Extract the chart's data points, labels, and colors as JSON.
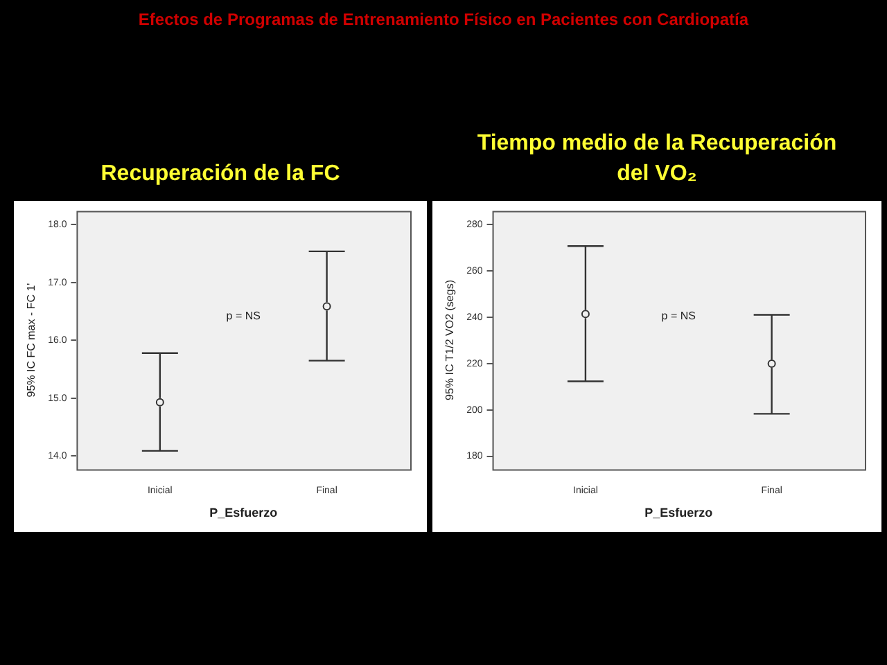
{
  "chart_data": [
    {
      "type": "scatter",
      "title": "Recuperación de la FC",
      "annotations": [
        "Efectos de Programas de Entrenamiento Físico en Pacientes con Cardiopatía",
        "p = NS"
      ],
      "xlabel": "P_Esfuerzo",
      "ylabel": "95% IC FC max - FC 1'",
      "categories": [
        "Inicial",
        "Final"
      ],
      "values": [
        14.93,
        16.59
      ],
      "errors": [
        [
          14.09,
          15.78
        ],
        [
          15.65,
          17.54
        ]
      ],
      "color": "#333333",
      "marker": "circle",
      "ylim": [
        13.77,
        18.24
      ],
      "yticks": [
        {
          "value": 14,
          "label": "14.0"
        },
        {
          "value": 15,
          "label": "15.0"
        },
        {
          "value": 16,
          "label": "16.0"
        },
        {
          "value": 17,
          "label": "17.0"
        },
        {
          "value": 18,
          "label": "18.0"
        }
      ],
      "grid": false,
      "legend": false
    },
    {
      "type": "scatter",
      "title": "Tiempo medio de la Recuperación del VO₂",
      "annotations": [
        "p = NS"
      ],
      "xlabel": "P_Esfuerzo",
      "ylabel": "95% IC T1/2 VO2 (segs)",
      "categories": [
        "Inicial",
        "Final"
      ],
      "values": [
        241.4,
        219.9
      ],
      "errors": [
        [
          212.3,
          270.7
        ],
        [
          198.3,
          241
        ]
      ],
      "color": "#333333",
      "marker": "circle",
      "ylim": [
        174.3,
        285.9
      ],
      "yticks": [
        180,
        200,
        220,
        240,
        260,
        280
      ],
      "grid": false,
      "legend": false
    }
  ]
}
